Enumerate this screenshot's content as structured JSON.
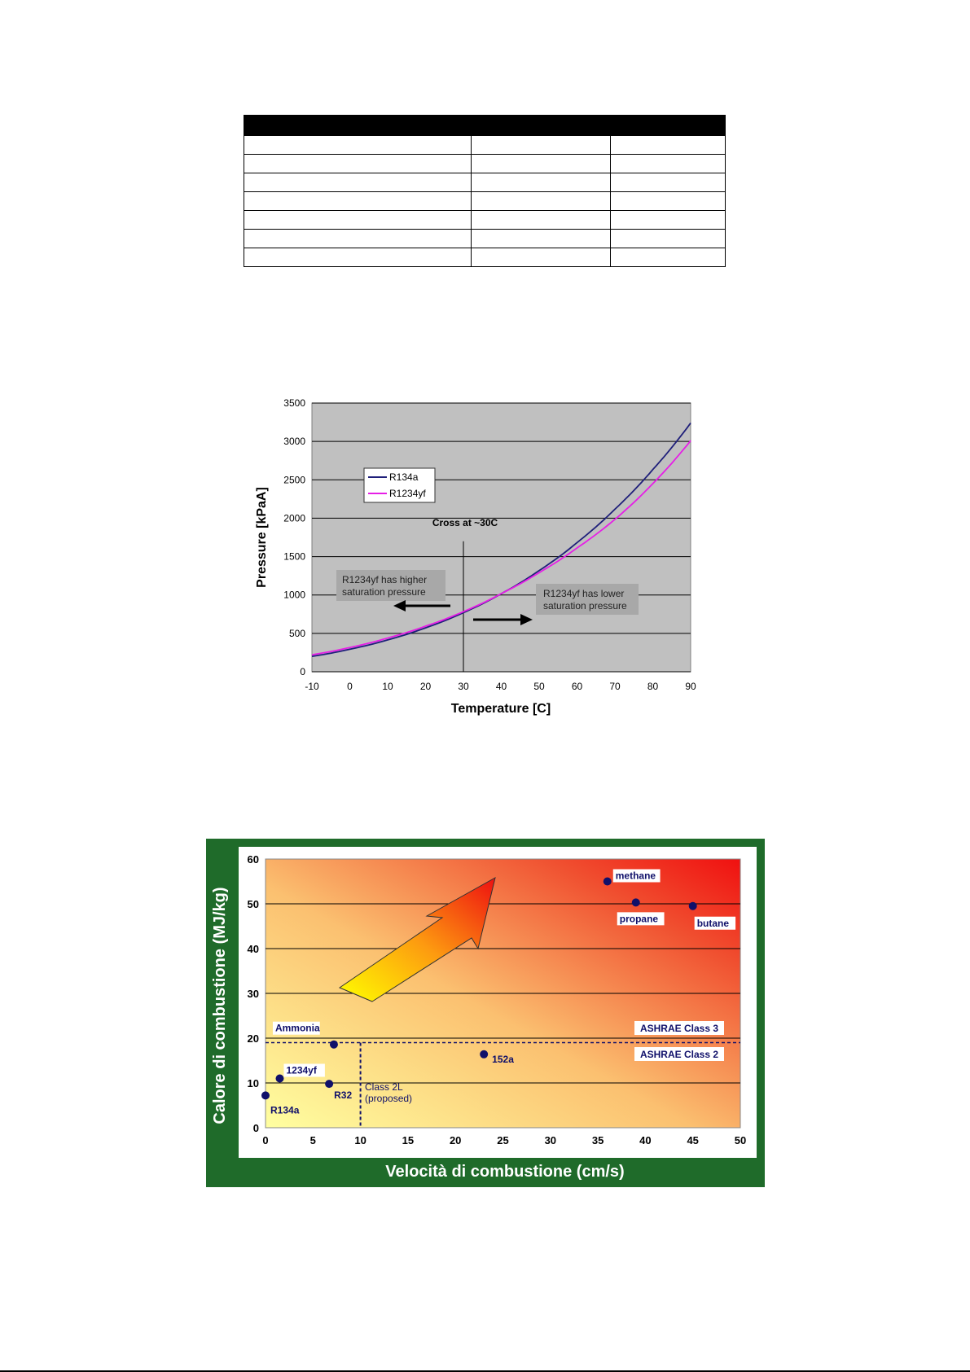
{
  "chart_data": [
    {
      "type": "line",
      "xlabel": "Temperature [C]",
      "ylabel": "Pressure [kPaA]",
      "xlim": [
        -10,
        90
      ],
      "ylim": [
        0,
        3500
      ],
      "xticks": [
        -10,
        0,
        10,
        20,
        30,
        40,
        50,
        60,
        70,
        80,
        90
      ],
      "yticks": [
        0,
        500,
        1000,
        1500,
        2000,
        2500,
        3000,
        3500
      ],
      "grid": "horizontal",
      "legend_position": "upper-left",
      "background": "#c0c0c0",
      "x": [
        -10,
        0,
        10,
        20,
        30,
        40,
        50,
        60,
        70,
        80,
        90
      ],
      "series": [
        {
          "name": "R134a",
          "color": "#1f1f7a",
          "values": [
            200,
            293,
            415,
            572,
            770,
            1017,
            1318,
            1682,
            2117,
            2633,
            3240
          ]
        },
        {
          "name": "R1234yf",
          "color": "#e61ee6",
          "values": [
            221,
            316,
            439,
            594,
            783,
            1018,
            1291,
            1612,
            1985,
            2450,
            3010
          ]
        }
      ],
      "annotations": {
        "cross": {
          "label": "Cross at ~30C",
          "x": 30
        },
        "left_note": "R1234yf has higher saturation pressure",
        "right_note": "R1234yf has lower saturation pressure"
      }
    },
    {
      "type": "scatter",
      "xlabel": "Velocità di combustione (cm/s)",
      "ylabel": "Calore di combustione (MJ/kg)",
      "xlim": [
        0,
        50
      ],
      "ylim": [
        0,
        60
      ],
      "xticks": [
        0,
        5,
        10,
        15,
        20,
        25,
        30,
        35,
        40,
        45,
        50
      ],
      "yticks": [
        0,
        10,
        20,
        30,
        40,
        50,
        60
      ],
      "grid": "horizontal",
      "frame_color": "#1f6b2a",
      "point_color": "#10106a",
      "points": [
        {
          "label": "R134a",
          "x": 0,
          "y": 7.2
        },
        {
          "label": "1234yf",
          "x": 1.5,
          "y": 11
        },
        {
          "label": "R32",
          "x": 6.7,
          "y": 9.8
        },
        {
          "label": "Ammonia",
          "x": 7.2,
          "y": 18.6
        },
        {
          "label": "152a",
          "x": 23,
          "y": 16.4
        },
        {
          "label": "methane",
          "x": 36,
          "y": 55
        },
        {
          "label": "propane",
          "x": 39,
          "y": 50.3
        },
        {
          "label": "butane",
          "x": 45,
          "y": 49.5
        }
      ],
      "threshold_lines": {
        "class_boundary_y": 19,
        "class_2l_x": 10,
        "class3_label": "ASHRAE Class 3",
        "class2_label": "ASHRAE Class 2",
        "class2l_label_line1": "Class 2L",
        "class2l_label_line2": "(proposed)"
      }
    }
  ]
}
